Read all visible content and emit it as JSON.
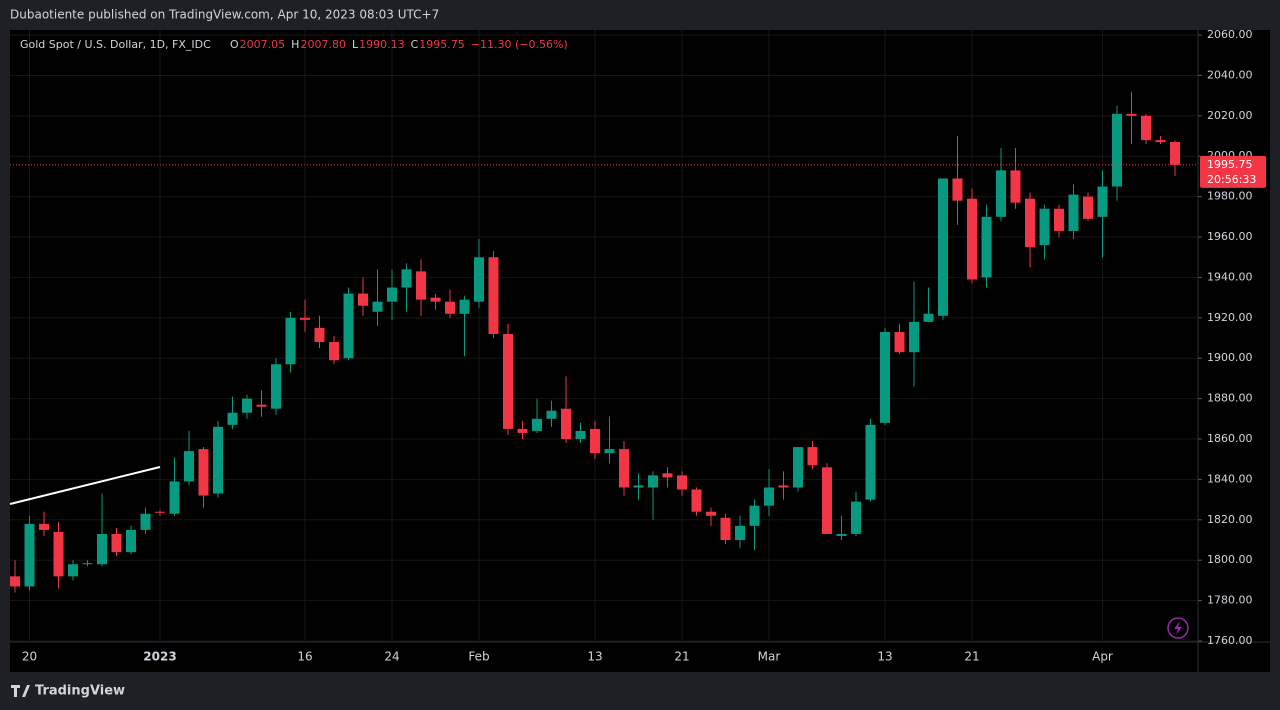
{
  "header": {
    "text": "Dubaotiente published on TradingView.com, Apr 10, 2023 08:03 UTC+7"
  },
  "footer": {
    "brand": "TradingView"
  },
  "chart_data": {
    "type": "candlestick",
    "title": "Gold Spot / U.S. Dollar, 1D, FX_IDC",
    "legend": {
      "o_label": "O",
      "o": "2007.05",
      "h_label": "H",
      "h": "2007.80",
      "l_label": "L",
      "l": "1990.13",
      "c_label": "C",
      "c": "1995.75",
      "change": "−11.30 (−0.56%)"
    },
    "categories": [
      null,
      "20",
      null,
      null,
      null,
      null,
      null,
      null,
      null,
      null,
      "2023",
      null,
      null,
      null,
      null,
      null,
      null,
      null,
      null,
      null,
      "16",
      null,
      null,
      null,
      null,
      null,
      "24",
      null,
      null,
      null,
      null,
      null,
      "Feb",
      null,
      null,
      null,
      null,
      null,
      null,
      null,
      "13",
      null,
      null,
      null,
      null,
      null,
      "21",
      null,
      null,
      null,
      null,
      null,
      "Mar",
      null,
      null,
      null,
      null,
      null,
      null,
      null,
      "13",
      null,
      null,
      null,
      null,
      null,
      "21",
      null,
      null,
      null,
      null,
      null,
      null,
      null,
      null,
      "Apr",
      null,
      null,
      null,
      null,
      null
    ],
    "series": [
      {
        "name": "Gold Spot / U.S. Dollar",
        "up_color": "#089981",
        "down_color": "#f23645",
        "open": [
          1792,
          1787,
          1818,
          1814,
          1792,
          1798,
          1798,
          1813,
          1804,
          1815,
          1824,
          1823,
          1839,
          1855,
          1833,
          1867,
          1873,
          1877,
          1875,
          1897,
          1920,
          1915,
          1908,
          1900,
          1932,
          1923,
          1928,
          1935,
          1943,
          1930,
          1928,
          1922,
          1928,
          1950,
          1912,
          1865,
          1864,
          1870,
          1875,
          1860,
          1865,
          1853,
          1855,
          1836,
          1836,
          1843,
          1842,
          1835,
          1824,
          1821,
          1810,
          1817,
          1827,
          1837,
          1836,
          1856,
          1846,
          1812,
          1813,
          1830,
          1868,
          1913,
          1903,
          1918,
          1921,
          1989,
          1979,
          1940,
          1970,
          1993,
          1979,
          1956,
          1974,
          1963,
          1980,
          1970,
          1985,
          2021,
          2020,
          2008,
          2007.05
        ],
        "high": [
          1800,
          1822,
          1824,
          1819,
          1800,
          1800,
          1833,
          1816,
          1817,
          1826,
          1825,
          1851,
          1864,
          1856,
          1869,
          1881,
          1882,
          1884,
          1900,
          1923,
          1929,
          1921,
          1911,
          1935,
          1940,
          1944,
          1944,
          1947,
          1949,
          1932,
          1934,
          1931,
          1959,
          1953,
          1917,
          1869,
          1880,
          1879,
          1891,
          1868,
          1869,
          1871,
          1859,
          1843,
          1844,
          1846,
          1844,
          1836,
          1826,
          1823,
          1822,
          1830,
          1845,
          1844,
          1856,
          1859,
          1848,
          1822,
          1834,
          1870,
          1915,
          1917,
          1938,
          1935,
          1989,
          2010,
          1984,
          1976,
          2004,
          2004,
          1982,
          1976,
          1976,
          1986,
          1982,
          1993,
          2025,
          2032,
          2021,
          2010,
          2007.8
        ],
        "low": [
          1784,
          1785,
          1812,
          1786,
          1790,
          1797,
          1797,
          1802,
          1803,
          1813,
          1822,
          1822,
          1837,
          1826,
          1831,
          1865,
          1870,
          1871,
          1872,
          1893,
          1913,
          1905,
          1897,
          1899,
          1921,
          1916,
          1919,
          1923,
          1921,
          1924,
          1920,
          1901,
          1925,
          1910,
          1862,
          1860,
          1863,
          1866,
          1858,
          1858,
          1850,
          1848,
          1832,
          1830,
          1820,
          1836,
          1832,
          1822,
          1817,
          1808,
          1806,
          1805,
          1822,
          1830,
          1834,
          1845,
          1813,
          1810,
          1812,
          1829,
          1867,
          1902,
          1886,
          1918,
          1919,
          1966,
          1937,
          1935,
          1968,
          1974,
          1945,
          1949,
          1960,
          1959,
          1968,
          1950,
          1978,
          2006,
          2006,
          2006,
          1990.13
        ],
        "close": [
          1787,
          1818,
          1815,
          1792,
          1798,
          1798.5,
          1813,
          1804,
          1815,
          1823,
          1823.5,
          1839,
          1854,
          1832,
          1866,
          1873,
          1880,
          1876,
          1897,
          1920,
          1919,
          1908,
          1899,
          1932,
          1926,
          1928,
          1935,
          1944,
          1929,
          1928,
          1922,
          1929,
          1950,
          1912,
          1865,
          1863,
          1870,
          1874,
          1860,
          1864,
          1853,
          1855,
          1836,
          1837,
          1842,
          1841,
          1835,
          1824,
          1822,
          1810,
          1817,
          1827,
          1836,
          1836,
          1856,
          1847,
          1813,
          1813,
          1829,
          1867,
          1913,
          1903,
          1918,
          1922,
          1989,
          1978,
          1939,
          1970,
          1993,
          1977,
          1955,
          1974,
          1963,
          1981,
          1969,
          1985,
          2021,
          2020,
          2008,
          2007,
          1995.75
        ]
      }
    ],
    "last_price": 1995.75,
    "countdown": "20:56:33",
    "ylim": [
      1759.5,
      2062.5
    ],
    "yticks": [
      {
        "value": 1760,
        "label": "1760.00"
      },
      {
        "value": 1780,
        "label": "1780.00"
      },
      {
        "value": 1800,
        "label": "1800.00"
      },
      {
        "value": 1820,
        "label": "1820.00"
      },
      {
        "value": 1840,
        "label": "1840.00"
      },
      {
        "value": 1860,
        "label": "1860.00"
      },
      {
        "value": 1880,
        "label": "1880.00"
      },
      {
        "value": 1900,
        "label": "1900.00"
      },
      {
        "value": 1920,
        "label": "1920.00"
      },
      {
        "value": 1940,
        "label": "1940.00"
      },
      {
        "value": 1960,
        "label": "1960.00"
      },
      {
        "value": 1980,
        "label": "1980.00"
      },
      {
        "value": 2000,
        "label": "2000.00"
      },
      {
        "value": 2020,
        "label": "2020.00"
      },
      {
        "value": 2040,
        "label": "2040.00"
      },
      {
        "value": 2060,
        "label": "2060.00"
      }
    ],
    "grid": true
  }
}
